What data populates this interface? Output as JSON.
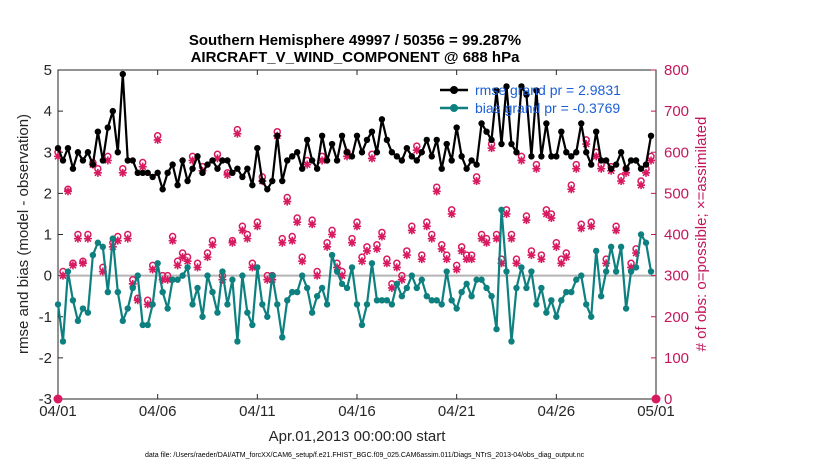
{
  "chart_data": {
    "type": "line",
    "title": "Southern Hemisphere 49997 / 50356 = 99.287%",
    "subtitle": "AIRCRAFT_V_WIND_COMPONENT @ 688 hPa",
    "xlabel": "Apr.01,2013 00:00:00 start",
    "ylabel": "rmse and bias (model - observation)",
    "y2label": "# of obs: o=possible; ×=assimilated",
    "footer": "data file: /Users/raeder/DAI/ATM_forcXX/CAM6_setup/f.e21.FHIST_BGC.f09_025.CAM6assim.011/Diags_NTrS_2013-04/obs_diag_output.nc",
    "xlim": [
      0,
      30
    ],
    "ylim": [
      -3,
      5
    ],
    "y2lim": [
      0,
      800
    ],
    "x_ticks": [
      0,
      5,
      10,
      15,
      20,
      25,
      30
    ],
    "x_tick_labels": [
      "04/01",
      "04/06",
      "04/11",
      "04/16",
      "04/21",
      "04/26",
      "05/01"
    ],
    "y_ticks": [
      -3,
      -2,
      -1,
      0,
      1,
      2,
      3,
      4,
      5
    ],
    "y_tick_labels": [
      "-3",
      "-2",
      "-1",
      "0",
      "1",
      "2",
      "3",
      "4",
      "5"
    ],
    "y2_ticks": [
      0,
      100,
      200,
      300,
      400,
      500,
      600,
      700,
      800
    ],
    "y2_tick_labels": [
      "0",
      "100",
      "200",
      "300",
      "400",
      "500",
      "600",
      "700",
      "800"
    ],
    "colors": {
      "rmse": "#000000",
      "bias": "#0e8080",
      "obs": "#d81b60",
      "zero_line": "#b4b4b4",
      "legend_text": "#1a5fd6",
      "right_axis": "#c2185b"
    },
    "legend": [
      {
        "name": "rmse",
        "label": "rmse grand pr = 2.9831"
      },
      {
        "name": "bias",
        "label": "bias grand pr = -0.3769"
      }
    ],
    "x": [
      0.0,
      0.25,
      0.5,
      0.75,
      1.0,
      1.25,
      1.5,
      1.75,
      2.0,
      2.25,
      2.5,
      2.75,
      3.0,
      3.25,
      3.5,
      3.75,
      4.0,
      4.25,
      4.5,
      4.75,
      5.0,
      5.25,
      5.5,
      5.75,
      6.0,
      6.25,
      6.5,
      6.75,
      7.0,
      7.25,
      7.5,
      7.75,
      8.0,
      8.25,
      8.5,
      8.75,
      9.0,
      9.25,
      9.5,
      9.75,
      10.0,
      10.25,
      10.5,
      10.75,
      11.0,
      11.25,
      11.5,
      11.75,
      12.0,
      12.25,
      12.5,
      12.75,
      13.0,
      13.25,
      13.5,
      13.75,
      14.0,
      14.25,
      14.5,
      14.75,
      15.0,
      15.25,
      15.5,
      15.75,
      16.0,
      16.25,
      16.5,
      16.75,
      17.0,
      17.25,
      17.5,
      17.75,
      18.0,
      18.25,
      18.5,
      18.75,
      19.0,
      19.25,
      19.5,
      19.75,
      20.0,
      20.25,
      20.5,
      20.75,
      21.0,
      21.25,
      21.5,
      21.75,
      22.0,
      22.25,
      22.5,
      22.75,
      23.0,
      23.25,
      23.5,
      23.75,
      24.0,
      24.25,
      24.5,
      24.75,
      25.0,
      25.25,
      25.5,
      25.75,
      26.0,
      26.25,
      26.5,
      26.75,
      27.0,
      27.25,
      27.5,
      27.75,
      28.0,
      28.25,
      28.5,
      28.75,
      29.0,
      29.25,
      29.5,
      29.75
    ],
    "series": [
      {
        "name": "rmse",
        "values": [
          3.1,
          2.8,
          3.1,
          2.6,
          3.0,
          2.8,
          3.0,
          2.7,
          3.5,
          2.8,
          3.6,
          4.0,
          3.0,
          4.9,
          2.8,
          2.8,
          2.5,
          2.5,
          2.5,
          2.4,
          2.5,
          2.1,
          2.5,
          2.7,
          2.2,
          2.8,
          2.3,
          2.6,
          2.9,
          2.5,
          2.7,
          2.8,
          2.6,
          2.8,
          2.8,
          2.5,
          2.6,
          2.4,
          2.6,
          2.2,
          3.1,
          2.3,
          2.1,
          2.3,
          3.4,
          2.3,
          2.8,
          2.9,
          3.0,
          2.6,
          3.3,
          2.8,
          2.6,
          3.4,
          2.8,
          3.2,
          2.8,
          3.4,
          3.0,
          2.9,
          3.4,
          3.0,
          3.3,
          3.5,
          3.0,
          3.8,
          3.3,
          3.0,
          2.9,
          2.8,
          3.1,
          2.9,
          2.8,
          3.0,
          3.3,
          2.9,
          3.3,
          2.6,
          3.2,
          2.8,
          3.6,
          2.9,
          2.6,
          2.8,
          2.7,
          3.7,
          3.5,
          3.3,
          4.5,
          3.2,
          4.6,
          3.2,
          3.0,
          4.6,
          4.4,
          2.9,
          4.5,
          2.9,
          3.7,
          2.9,
          2.9,
          3.5,
          3.0,
          2.9,
          3.0,
          3.7,
          3.0,
          2.7,
          3.5,
          2.8,
          2.8,
          2.6,
          2.7,
          3.0,
          2.6,
          2.8,
          2.8,
          2.6,
          2.7,
          3.4
        ]
      },
      {
        "name": "bias",
        "values": [
          -0.7,
          -1.6,
          0.1,
          -0.6,
          -1.1,
          -0.8,
          -0.9,
          0.5,
          0.8,
          0.7,
          -0.4,
          0.9,
          -0.4,
          -1.1,
          -0.8,
          -0.3,
          0.0,
          -1.2,
          -1.2,
          -0.7,
          0.3,
          -0.4,
          -0.8,
          -0.1,
          -0.1,
          0.0,
          0.2,
          -0.7,
          -0.3,
          -1.0,
          0.0,
          -0.4,
          -0.9,
          0.1,
          -0.7,
          -0.1,
          -1.6,
          0.0,
          -0.9,
          -1.2,
          0.2,
          -0.7,
          -1.0,
          0.0,
          -0.7,
          -1.5,
          -0.6,
          -0.4,
          -0.4,
          0.0,
          -0.3,
          -0.9,
          -0.5,
          -0.3,
          -0.7,
          0.5,
          0.1,
          -0.2,
          -0.3,
          0.2,
          -0.7,
          -1.2,
          -0.7,
          0.3,
          -0.6,
          -0.6,
          -0.6,
          -0.7,
          -0.2,
          -0.5,
          -0.3,
          0.0,
          -0.3,
          -0.1,
          -0.5,
          -0.6,
          -0.6,
          -0.7,
          0.1,
          -0.6,
          -0.8,
          -0.4,
          -0.2,
          -0.5,
          -0.1,
          -0.1,
          -0.3,
          -0.5,
          -1.3,
          1.6,
          0.1,
          -1.6,
          -0.3,
          0.2,
          -0.3,
          0.1,
          -0.7,
          -0.3,
          -0.9,
          -0.6,
          -1.0,
          -0.6,
          -0.4,
          -0.4,
          -0.1,
          0.0,
          -0.7,
          -1.0,
          0.6,
          -0.5,
          0.1,
          0.7,
          0.1,
          0.7,
          -0.8,
          0.1,
          0.2,
          1.0,
          0.8,
          0.1
        ]
      },
      {
        "name": "obs_possible",
        "values": [
          600,
          310,
          510,
          330,
          400,
          335,
          400,
          575,
          560,
          320,
          590,
          380,
          395,
          560,
          400,
          290,
          245,
          575,
          240,
          325,
          640,
          300,
          300,
          395,
          335,
          355,
          345,
          590,
          330,
          565,
          355,
          385,
          595,
          300,
          550,
          385,
          655,
          420,
          400,
          330,
          430,
          540,
          300,
          300,
          650,
          390,
          490,
          395,
          440,
          345,
          580,
          435,
          310,
          590,
          380,
          410,
          330,
          310,
          600,
          390,
          430,
          345,
          370,
          595,
          375,
          405,
          340,
          280,
          330,
          300,
          360,
          420,
          615,
          350,
          430,
          400,
          515,
          375,
          350,
          460,
          325,
          370,
          350,
          350,
          540,
          400,
          390,
          620,
          400,
          340,
          460,
          400,
          340,
          590,
          445,
          360,
          570,
          350,
          460,
          450,
          380,
          340,
          355,
          520,
          570,
          425,
          630,
          430,
          600,
          570,
          340,
          565,
          420,
          540,
          560,
          330,
          365,
          530,
          560,
          590
        ]
      },
      {
        "name": "obs_assimilated",
        "values": [
          590,
          300,
          505,
          325,
          390,
          330,
          390,
          570,
          550,
          310,
          580,
          370,
          385,
          550,
          390,
          280,
          240,
          565,
          230,
          315,
          630,
          290,
          290,
          385,
          325,
          345,
          335,
          580,
          320,
          555,
          345,
          375,
          585,
          290,
          545,
          380,
          645,
          410,
          390,
          320,
          420,
          530,
          290,
          290,
          640,
          380,
          480,
          385,
          430,
          335,
          570,
          425,
          300,
          580,
          370,
          400,
          320,
          300,
          590,
          380,
          420,
          335,
          360,
          585,
          365,
          395,
          330,
          270,
          320,
          290,
          350,
          410,
          605,
          340,
          420,
          390,
          505,
          365,
          340,
          450,
          315,
          360,
          340,
          340,
          530,
          390,
          380,
          610,
          390,
          330,
          450,
          390,
          330,
          580,
          435,
          350,
          560,
          340,
          450,
          440,
          370,
          330,
          345,
          510,
          560,
          415,
          620,
          420,
          590,
          560,
          330,
          555,
          410,
          530,
          550,
          320,
          355,
          520,
          550,
          580
        ]
      }
    ]
  }
}
